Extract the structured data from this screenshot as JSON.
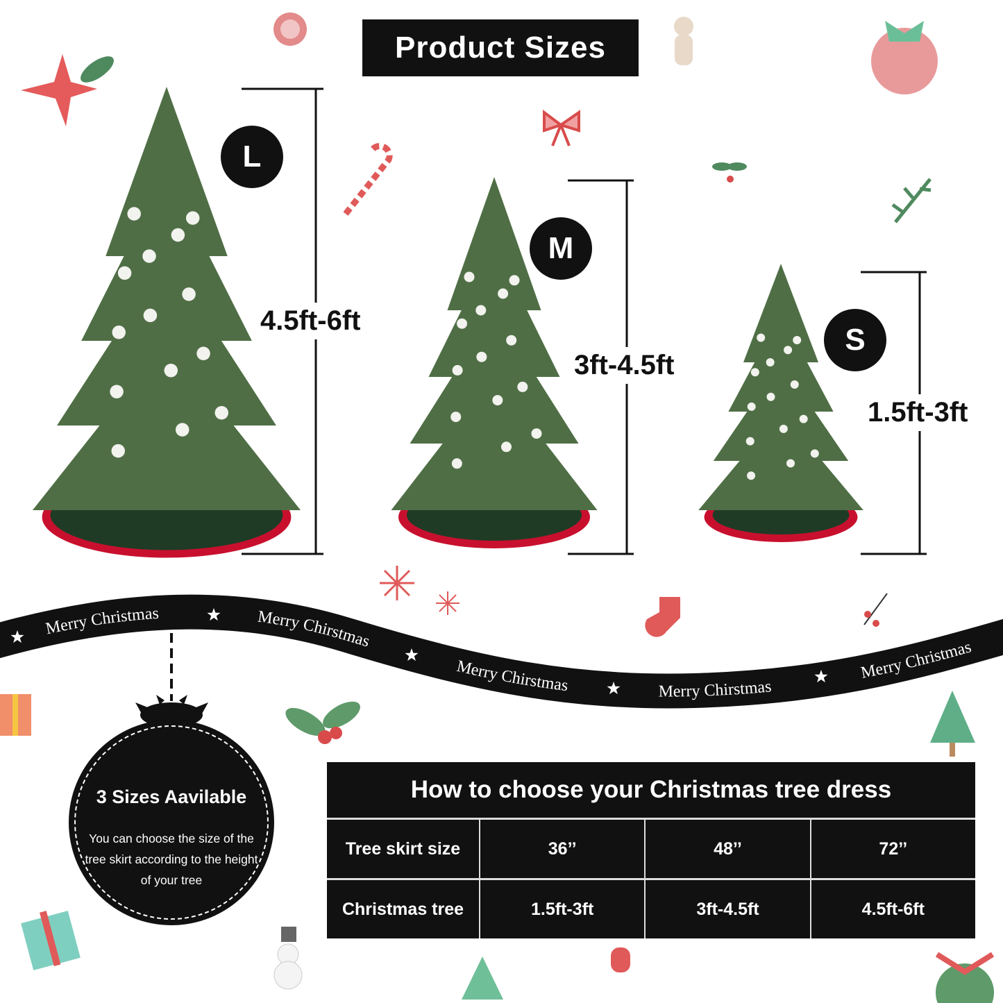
{
  "title": "Product Sizes",
  "sizes": [
    {
      "badge": "L",
      "range": "4.5ft-6ft"
    },
    {
      "badge": "M",
      "range": "3ft-4.5ft"
    },
    {
      "badge": "S",
      "range": "1.5ft-3ft"
    }
  ],
  "ribbon": {
    "items": [
      "Merry Christmas",
      "Merry Chirstmas",
      "Merry Chirstmas",
      "Merry Chirstmas",
      "Merry Christmas"
    ]
  },
  "ornament": {
    "heading": "3 Sizes Aavilable",
    "text": "You can choose the size of the tree skirt according to the height of your tree"
  },
  "table": {
    "title": "How to choose your Christmas tree dress",
    "rows": [
      {
        "label": "Tree skirt size",
        "values": [
          "36’’",
          "48’’",
          "72’’"
        ]
      },
      {
        "label": "Christmas tree",
        "values": [
          "1.5ft-3ft",
          "3ft-4.5ft",
          "4.5ft-6ft"
        ]
      }
    ]
  },
  "colors": {
    "black": "#111111",
    "tree_green": "#4f6e45",
    "skirt_green": "#1f3b26",
    "skirt_red": "#c8102e",
    "accent_red": "#e05a5a"
  }
}
